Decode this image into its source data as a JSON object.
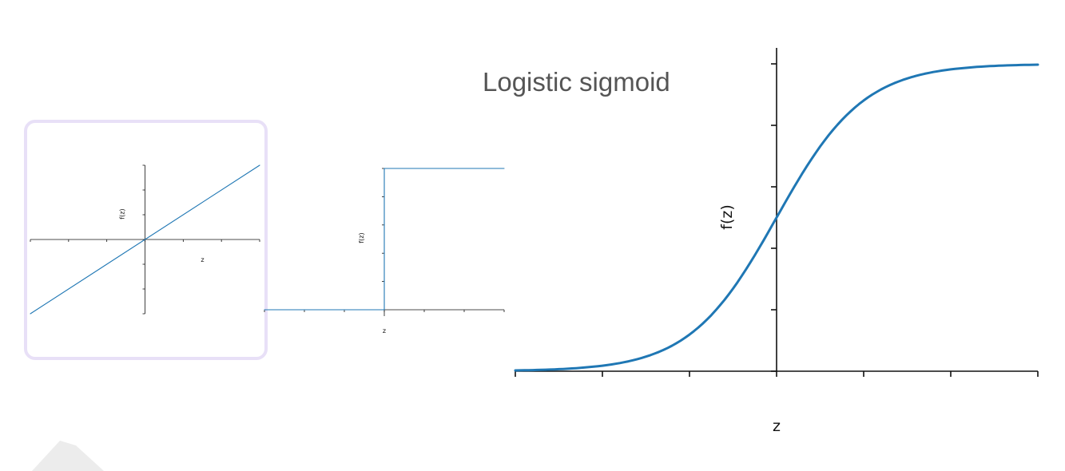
{
  "slide": {
    "title": "Logistic sigmoid"
  },
  "colors": {
    "line": "#1f77b4",
    "highlight_frame": "#e8e0f7",
    "title_text": "#555555"
  },
  "chart_data": [
    {
      "type": "line",
      "function": "identity",
      "x": [
        -3,
        3
      ],
      "y": [
        -3,
        3
      ],
      "xlim": [
        -3,
        3
      ],
      "ylim": [
        -3,
        3
      ],
      "xlabel": "z",
      "ylabel": "f(z)",
      "xticks": [
        "−3",
        "−2",
        "−1",
        "0",
        "1",
        "2",
        "3"
      ],
      "yticks": [
        "−3",
        "−2",
        "−1",
        "0",
        "1",
        "2",
        "3"
      ],
      "spines": "centered",
      "highlighted": true
    },
    {
      "type": "line",
      "function": "step",
      "x": [
        -3,
        0,
        0,
        3
      ],
      "y": [
        0,
        0,
        1,
        1
      ],
      "xlim": [
        -3,
        3
      ],
      "ylim": [
        0,
        1
      ],
      "xlabel": "z",
      "ylabel": "f(z)",
      "xticks": [
        "−3",
        "−2",
        "−1",
        "0",
        "1",
        "2",
        "3"
      ],
      "yticks": [
        "0.0",
        "0.2",
        "0.4",
        "0.6",
        "0.8",
        "1.0"
      ],
      "spines": "centered"
    },
    {
      "type": "line",
      "function": "logistic sigmoid",
      "x": [
        -6,
        -5,
        -4,
        -3,
        -2,
        -1,
        0,
        1,
        2,
        3,
        4,
        5,
        6
      ],
      "y": [
        0.0025,
        0.0067,
        0.018,
        0.047,
        0.119,
        0.269,
        0.5,
        0.731,
        0.881,
        0.953,
        0.982,
        0.9933,
        0.9975
      ],
      "xlim": [
        -6,
        6
      ],
      "ylim": [
        0,
        1
      ],
      "xlabel": "z",
      "ylabel": "f(z)",
      "xticks": [
        "−6",
        "−4",
        "−2",
        "0",
        "2",
        "4",
        "6"
      ],
      "yticks": [
        "0.0",
        "0.2",
        "0.4",
        "0.6",
        "0.8",
        "1.0"
      ],
      "spines": "centered"
    }
  ]
}
